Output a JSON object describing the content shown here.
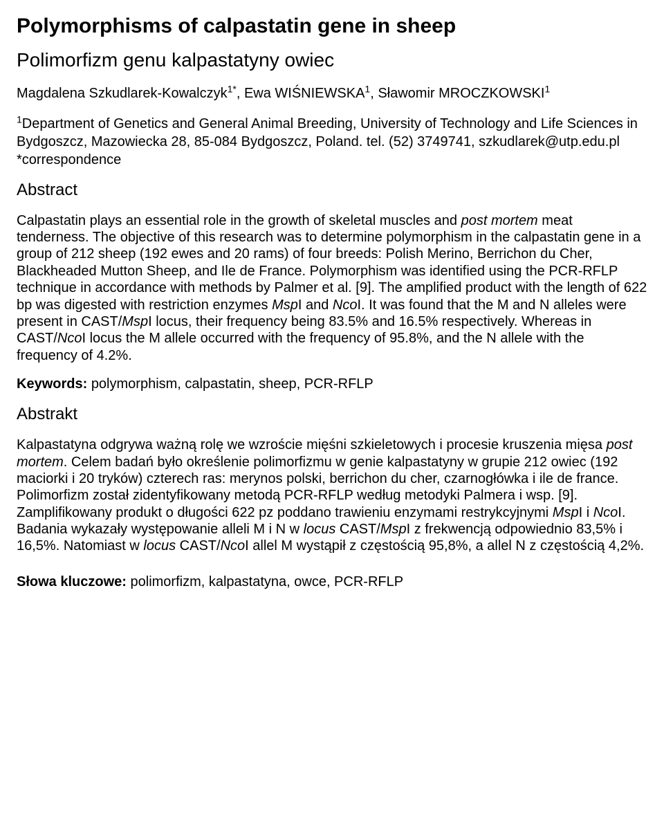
{
  "title_en": "Polymorphisms of calpastatin gene in sheep",
  "title_pl": "Polimorfizm genu kalpastatyny owiec",
  "authors_html": "Magdalena Szkudlarek-Kowalczyk<sup>1*</sup>, Ewa WIŚNIEWSKA<sup>1</sup>, Sławomir MROCZKOWSKI<sup>1</sup>",
  "affiliation_html": "<sup>1</sup>Department of Genetics and General Animal Breeding, University of Technology and Life Sciences in Bydgoszcz, Mazowiecka 28, 85-084 Bydgoszcz, Poland. tel. (52) 3749741, szkudlarek@utp.edu.pl",
  "correspondence": "*correspondence",
  "abstract_en_heading": "Abstract",
  "abstract_en_html": "Calpastatin plays an essential role in the growth of skeletal muscles and <span class=\"italic\">post mortem</span> meat tenderness. The objective of this research was to determine polymorphism in the calpastatin gene in a group of 212 sheep (192 ewes and 20 rams) of four breeds: Polish Merino, Berrichon du Cher, Blackheaded Mutton Sheep, and Ile de France. Polymorphism was identified using the PCR-RFLP technique in accordance with methods by Palmer et al. [9]. The amplified product with the length of 622 bp was digested with restriction enzymes <span class=\"italic\">Msp</span>I and <span class=\"italic\">Nco</span>I. It was found that the M and N alleles were present in CAST/<span class=\"italic\">Msp</span>I locus, their frequency being 83.5% and 16.5% respectively. Whereas in CAST/<span class=\"italic\">Nco</span>I locus the M allele occurred with the frequency of 95.8%, and the N allele with the frequency of 4.2%.",
  "keywords_en_label": "Keywords:",
  "keywords_en": "polymorphism, calpastatin, sheep, PCR-RFLP",
  "abstract_pl_heading": "Abstrakt",
  "abstract_pl_html": "Kalpastatyna odgrywa ważną rolę we wzroście mięśni szkieletowych i procesie kruszenia mięsa <span class=\"italic\">post mortem</span>. Celem badań było określenie polimorfizmu w genie kalpastatyny w grupie 212 owiec (192 maciorki i 20 tryków) czterech ras: merynos polski, berrichon du cher, czarnogłówka i ile de france. Polimorfizm został zidentyfikowany metodą PCR-RFLP według metodyki Palmera i wsp. [9]. Zamplifikowany produkt o długości 622 pz poddano trawieniu enzymami restrykcyjnymi <span class=\"italic\">Msp</span>I i <span class=\"italic\">Nco</span>I. Badania wykazały występowanie alleli M i N w <span class=\"italic\">locus</span> CAST/<span class=\"italic\">Msp</span>I z frekwencją odpowiednio 83,5% i 16,5%. Natomiast w <span class=\"italic\">locus</span> CAST/<span class=\"italic\">Nco</span>I allel M wystąpił z częstością 95,8%, a allel N z częstością 4,2%.",
  "keywords_pl_label": "Słowa kluczowe:",
  "keywords_pl": "polimorfizm, kalpastatyna, owce, PCR-RFLP"
}
